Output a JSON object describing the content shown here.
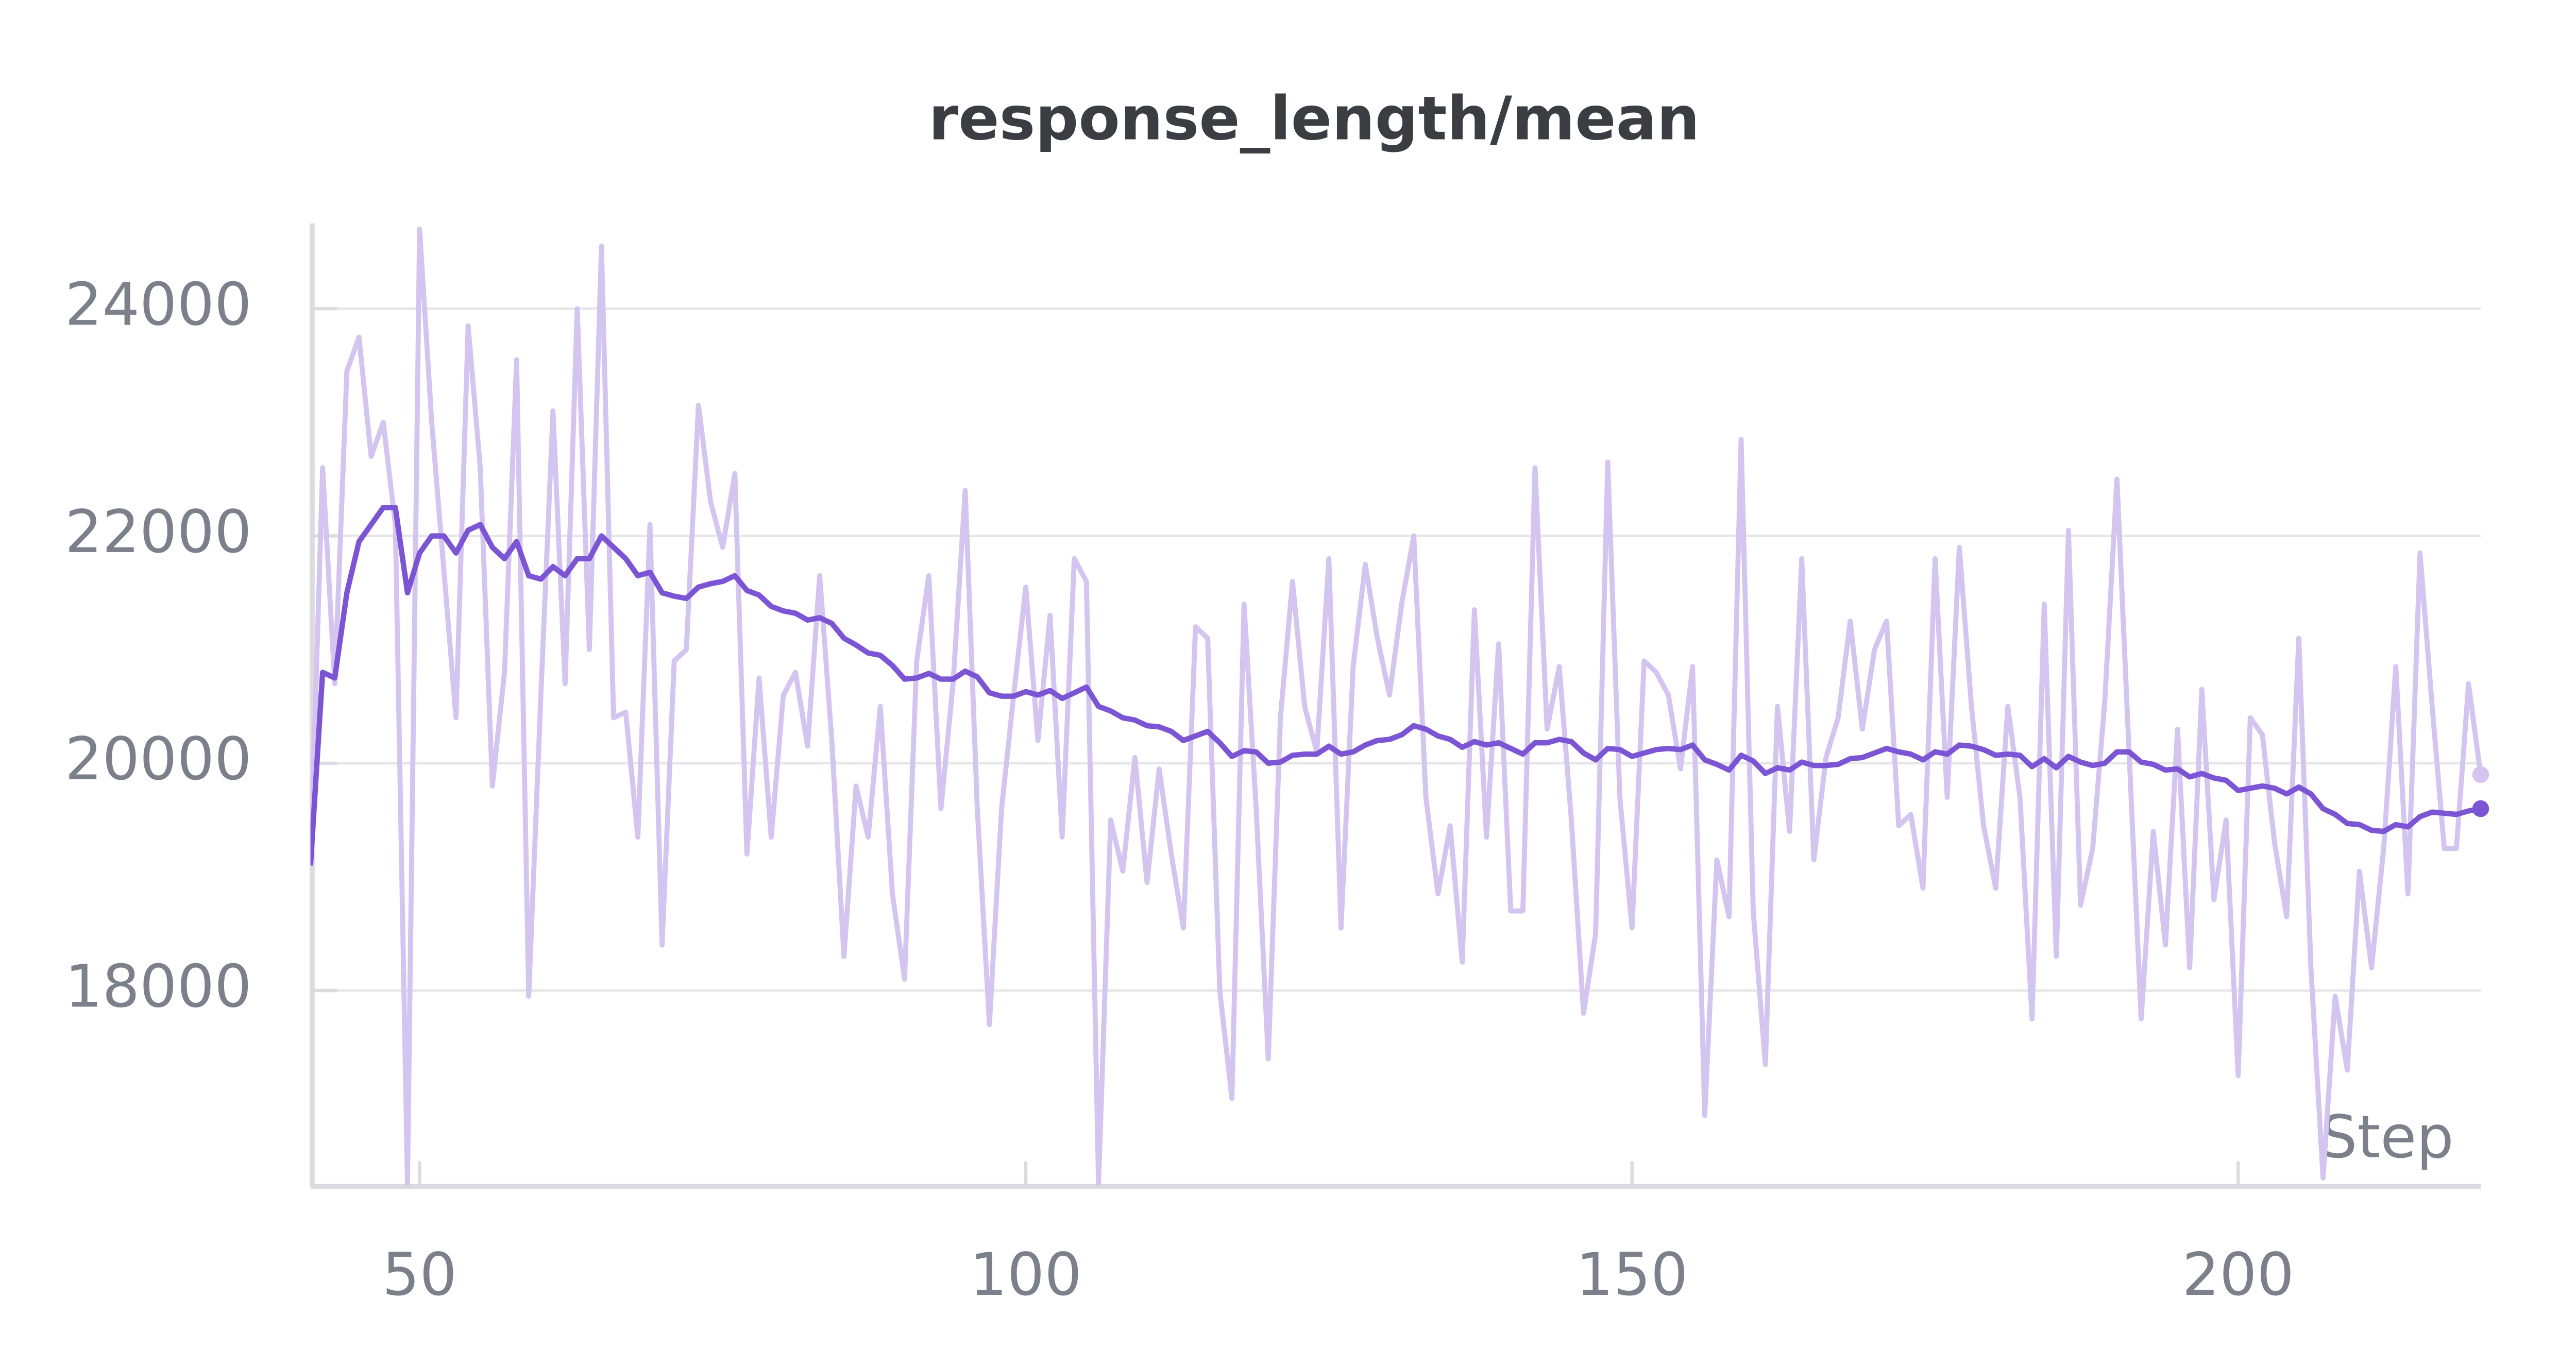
{
  "chart_data": {
    "type": "line",
    "title": "response_length/mean",
    "x_label": "Step",
    "x": [
      41,
      42,
      43,
      44,
      45,
      46,
      47,
      48,
      49,
      50,
      51,
      52,
      53,
      54,
      55,
      56,
      57,
      58,
      59,
      60,
      61,
      62,
      63,
      64,
      65,
      66,
      67,
      68,
      69,
      70,
      71,
      72,
      73,
      74,
      75,
      76,
      77,
      78,
      79,
      80,
      81,
      82,
      83,
      84,
      85,
      86,
      87,
      88,
      89,
      90,
      91,
      92,
      93,
      94,
      95,
      96,
      97,
      98,
      99,
      100,
      101,
      102,
      103,
      104,
      105,
      106,
      107,
      108,
      109,
      110,
      111,
      112,
      113,
      114,
      115,
      116,
      117,
      118,
      119,
      120,
      121,
      122,
      123,
      124,
      125,
      126,
      127,
      128,
      129,
      130,
      131,
      132,
      133,
      134,
      135,
      136,
      137,
      138,
      139,
      140,
      141,
      142,
      143,
      144,
      145,
      146,
      147,
      148,
      149,
      150,
      151,
      152,
      153,
      154,
      155,
      156,
      157,
      158,
      159,
      160,
      161,
      162,
      163,
      164,
      165,
      166,
      167,
      168,
      169,
      170,
      171,
      172,
      173,
      174,
      175,
      176,
      177,
      178,
      179,
      180,
      181,
      182,
      183,
      184,
      185,
      186,
      187,
      188,
      189,
      190,
      191,
      192,
      193,
      194,
      195,
      196,
      197,
      198,
      199,
      200,
      201,
      202,
      203,
      204,
      205,
      206,
      207,
      208,
      209,
      210,
      211,
      212,
      213,
      214,
      215,
      216,
      217,
      218,
      219,
      220
    ],
    "series": [
      {
        "color": "#d3c4f0",
        "values": [
          19100,
          22600,
          20700,
          23450,
          23750,
          22700,
          23000,
          22100,
          16300,
          24700,
          23000,
          21700,
          20400,
          23850,
          22600,
          19800,
          20800,
          23550,
          17950,
          20600,
          23100,
          20700,
          24000,
          21000,
          24550,
          20400,
          20450,
          19350,
          22100,
          18400,
          20900,
          21000,
          23150,
          22300,
          21900,
          22550,
          19200,
          20750,
          19350,
          20600,
          20800,
          20150,
          21650,
          20200,
          18300,
          19800,
          19350,
          20500,
          18850,
          18100,
          20900,
          21650,
          19600,
          20700,
          22400,
          19600,
          17700,
          19600,
          20600,
          21550,
          20200,
          21300,
          19350,
          21800,
          21600,
          16300,
          19500,
          19050,
          20050,
          18950,
          19950,
          19200,
          18550,
          21200,
          21100,
          18000,
          17050,
          21400,
          19600,
          17400,
          20400,
          21600,
          20500,
          20100,
          21800,
          18550,
          20850,
          21750,
          21100,
          20600,
          21400,
          22000,
          19700,
          18850,
          19450,
          18250,
          21350,
          19350,
          21050,
          18700,
          18700,
          22600,
          20300,
          20850,
          19500,
          17800,
          18500,
          22650,
          19700,
          18550,
          20900,
          20800,
          20600,
          19950,
          20850,
          16900,
          19150,
          18650,
          22850,
          18700,
          17350,
          20500,
          19400,
          21800,
          19150,
          20050,
          20400,
          21250,
          20300,
          21000,
          21250,
          19450,
          19550,
          18900,
          21800,
          19700,
          21900,
          20500,
          19450,
          18900,
          20500,
          19700,
          17750,
          21400,
          18300,
          22050,
          18750,
          19250,
          20550,
          22500,
          20100,
          17750,
          19400,
          18400,
          20300,
          18200,
          20650,
          18800,
          19500,
          17250,
          20400,
          20250,
          19300,
          18650,
          21100,
          18200,
          16350,
          17950,
          17300,
          19050,
          18200,
          19250,
          20850,
          18850,
          21850,
          20500,
          19250,
          19250,
          20700,
          19900
        ]
      },
      {
        "color": "#7c55d4",
        "values": [
          19100,
          20800,
          20750,
          21500,
          21950,
          22100,
          22250,
          22250,
          21500,
          21850,
          22000,
          22000,
          21850,
          22050,
          22100,
          21900,
          21800,
          21950,
          21650,
          21620,
          21730,
          21650,
          21800,
          21800,
          22000,
          21900,
          21800,
          21650,
          21680,
          21500,
          21470,
          21450,
          21550,
          21580,
          21600,
          21650,
          21520,
          21480,
          21380,
          21340,
          21320,
          21260,
          21280,
          21230,
          21100,
          21040,
          20970,
          20950,
          20860,
          20740,
          20750,
          20790,
          20740,
          20740,
          20810,
          20760,
          20620,
          20590,
          20590,
          20630,
          20600,
          20640,
          20570,
          20620,
          20670,
          20500,
          20460,
          20400,
          20380,
          20330,
          20320,
          20280,
          20200,
          20240,
          20280,
          20180,
          20060,
          20110,
          20100,
          20000,
          20010,
          20070,
          20080,
          20080,
          20150,
          20080,
          20100,
          20160,
          20200,
          20210,
          20250,
          20330,
          20300,
          20240,
          20210,
          20140,
          20190,
          20160,
          20180,
          20130,
          20080,
          20180,
          20180,
          20210,
          20190,
          20090,
          20030,
          20130,
          20120,
          20060,
          20090,
          20120,
          20130,
          20120,
          20160,
          20030,
          19990,
          19940,
          20070,
          20020,
          19910,
          19960,
          19940,
          20010,
          19980,
          19980,
          19990,
          20040,
          20050,
          20090,
          20130,
          20100,
          20080,
          20030,
          20100,
          20080,
          20160,
          20150,
          20120,
          20070,
          20080,
          20070,
          19970,
          20040,
          19960,
          20060,
          20010,
          19980,
          20000,
          20100,
          20100,
          20010,
          19990,
          19940,
          19950,
          19880,
          19910,
          19870,
          19850,
          19760,
          19780,
          19800,
          19780,
          19730,
          19790,
          19730,
          19600,
          19550,
          19470,
          19460,
          19410,
          19400,
          19460,
          19440,
          19530,
          19570,
          19560,
          19550,
          19580,
          19600
        ]
      }
    ],
    "xlim": [
      41,
      220
    ],
    "xticks": [
      50,
      100,
      150,
      200
    ],
    "ylim": [
      16290,
      24750
    ],
    "yticks": [
      18000,
      20000,
      22000,
      24000
    ],
    "grid": true
  }
}
